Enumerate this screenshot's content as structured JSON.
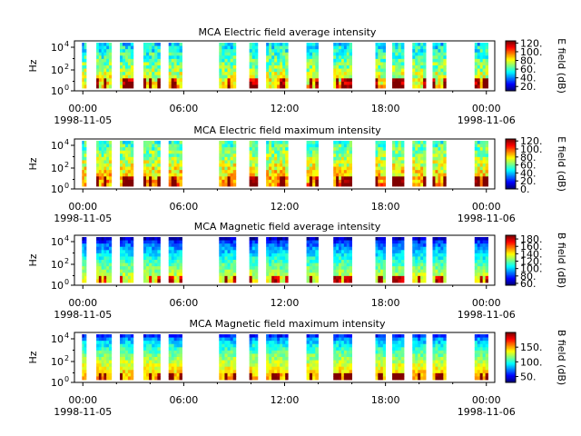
{
  "chart_data": [
    {
      "type": "heatmap",
      "title": "MCA  Electric field average intensity",
      "ylabel": "Hz",
      "y_scale": "log",
      "y_ticks": [
        "10^4",
        "10^2",
        "10^0"
      ],
      "x_ticks": [
        "00:00",
        "06:00",
        "12:00",
        "18:00",
        "00:00"
      ],
      "x_date_labels": [
        {
          "at": "00:00",
          "text": "1998-11-05"
        },
        {
          "at": "24:00",
          "text": "1998-11-06"
        }
      ],
      "xlim_hours": [
        -0.5,
        24.5
      ],
      "colorbar": {
        "label": "E field (dB)",
        "ticks": [
          "120.",
          "100.",
          "80.",
          "60.",
          "40.",
          "20."
        ],
        "range": [
          10,
          125
        ]
      },
      "data_segments_hours": [
        [
          -0.05,
          0.2
        ],
        [
          0.8,
          1.7
        ],
        [
          2.2,
          3.0
        ],
        [
          3.6,
          4.6
        ],
        [
          5.1,
          5.9
        ],
        [
          8.1,
          9.1
        ],
        [
          9.9,
          10.4
        ],
        [
          10.9,
          12.2
        ],
        [
          13.3,
          14.0
        ],
        [
          14.9,
          16.0
        ],
        [
          17.4,
          18.0
        ],
        [
          18.4,
          19.1
        ],
        [
          19.6,
          20.4
        ],
        [
          20.8,
          21.6
        ],
        [
          23.3,
          24.1
        ]
      ],
      "colormap": "jet (blue → cyan → green → yellow → red)"
    },
    {
      "type": "heatmap",
      "title": "MCA  Electric field maximum intensity",
      "ylabel": "Hz",
      "y_scale": "log",
      "y_ticks": [
        "10^4",
        "10^2",
        "10^0"
      ],
      "x_ticks": [
        "00:00",
        "06:00",
        "12:00",
        "18:00",
        "00:00"
      ],
      "x_date_labels": [
        {
          "at": "00:00",
          "text": "1998-11-05"
        },
        {
          "at": "24:00",
          "text": "1998-11-06"
        }
      ],
      "xlim_hours": [
        -0.5,
        24.5
      ],
      "colorbar": {
        "label": "E field (dB)",
        "ticks": [
          "120.",
          "100.",
          "80.",
          "60.",
          "40.",
          "20.",
          "0."
        ],
        "range": [
          0,
          125
        ]
      },
      "data_segments_hours": [
        [
          -0.05,
          0.2
        ],
        [
          0.8,
          1.7
        ],
        [
          2.2,
          3.0
        ],
        [
          3.6,
          4.6
        ],
        [
          5.1,
          5.9
        ],
        [
          8.1,
          9.1
        ],
        [
          9.9,
          10.4
        ],
        [
          10.9,
          12.2
        ],
        [
          13.3,
          14.0
        ],
        [
          14.9,
          16.0
        ],
        [
          17.4,
          18.0
        ],
        [
          18.4,
          19.1
        ],
        [
          19.6,
          20.4
        ],
        [
          20.8,
          21.6
        ],
        [
          23.3,
          24.1
        ]
      ],
      "colormap": "jet (blue → cyan → green → yellow → red)"
    },
    {
      "type": "heatmap",
      "title": "MCA  Magnetic field average intensity",
      "ylabel": "Hz",
      "y_scale": "log",
      "y_ticks": [
        "10^4",
        "10^2",
        "10^0"
      ],
      "x_ticks": [
        "00:00",
        "06:00",
        "12:00",
        "18:00",
        "00:00"
      ],
      "x_date_labels": [
        {
          "at": "00:00",
          "text": "1998-11-05"
        },
        {
          "at": "24:00",
          "text": "1998-11-06"
        }
      ],
      "xlim_hours": [
        -0.5,
        24.5
      ],
      "colorbar": {
        "label": "B field (dB)",
        "ticks": [
          "180.",
          "160.",
          "140.",
          "120.",
          "100.",
          "80.",
          "60."
        ],
        "range": [
          55,
          190
        ]
      },
      "data_segments_hours": [
        [
          -0.05,
          0.2
        ],
        [
          0.8,
          1.7
        ],
        [
          2.2,
          3.0
        ],
        [
          3.6,
          4.6
        ],
        [
          5.1,
          5.9
        ],
        [
          8.1,
          9.1
        ],
        [
          9.9,
          10.4
        ],
        [
          10.9,
          12.2
        ],
        [
          13.3,
          14.0
        ],
        [
          14.9,
          16.0
        ],
        [
          17.4,
          18.0
        ],
        [
          18.4,
          19.1
        ],
        [
          19.6,
          20.4
        ],
        [
          20.8,
          21.6
        ],
        [
          23.3,
          24.1
        ]
      ],
      "colormap": "jet (blue → cyan → green → yellow → red)"
    },
    {
      "type": "heatmap",
      "title": "MCA  Magnetic field maximum intensity",
      "ylabel": "Hz",
      "y_scale": "log",
      "y_ticks": [
        "10^4",
        "10^2",
        "10^0"
      ],
      "x_ticks": [
        "00:00",
        "06:00",
        "12:00",
        "18:00",
        "00:00"
      ],
      "x_date_labels": [
        {
          "at": "00:00",
          "text": "1998-11-05"
        },
        {
          "at": "24:00",
          "text": "1998-11-06"
        }
      ],
      "xlim_hours": [
        -0.5,
        24.5
      ],
      "colorbar": {
        "label": "B field (dB)",
        "ticks": [
          "150.",
          "100.",
          "50."
        ],
        "range": [
          30,
          200
        ]
      },
      "data_segments_hours": [
        [
          -0.05,
          0.2
        ],
        [
          0.8,
          1.7
        ],
        [
          2.2,
          3.0
        ],
        [
          3.6,
          4.6
        ],
        [
          5.1,
          5.9
        ],
        [
          8.1,
          9.1
        ],
        [
          9.9,
          10.4
        ],
        [
          10.9,
          12.2
        ],
        [
          13.3,
          14.0
        ],
        [
          14.9,
          16.0
        ],
        [
          17.4,
          18.0
        ],
        [
          18.4,
          19.1
        ],
        [
          19.6,
          20.4
        ],
        [
          20.8,
          21.6
        ],
        [
          23.3,
          24.1
        ]
      ],
      "colormap": "jet (blue → cyan → green → yellow → red)"
    }
  ]
}
